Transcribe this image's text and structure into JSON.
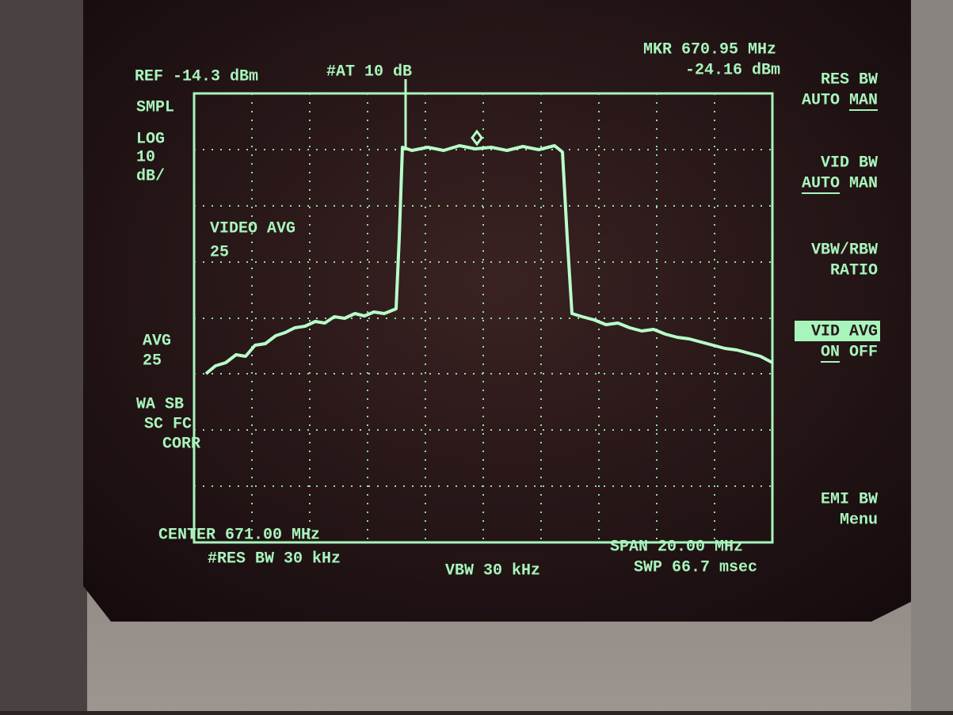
{
  "header": {
    "ref": "REF -14.3 dBm",
    "attenuation": "#AT 10 dB",
    "marker_freq": "MKR 670.95 MHz",
    "marker_level": "-24.16 dBm"
  },
  "left_annotations": [
    "SMPL",
    "LOG",
    "10",
    "dB/",
    "AVG",
    "25",
    "WA SB",
    "SC FC",
    "CORR"
  ],
  "overlay": [
    "VIDEO AVG",
    "25"
  ],
  "softkeys": [
    {
      "label": [
        "RES BW"
      ],
      "options": [
        "AUTO",
        "MAN"
      ]
    },
    {
      "label": [
        "VID BW"
      ],
      "options": [
        "AUTO",
        "MAN"
      ]
    },
    {
      "label": [
        "VBW/RBW",
        "RATIO"
      ],
      "options": []
    },
    {
      "label": [
        "VID AVG"
      ],
      "options": [
        "ON",
        "OFF"
      ]
    },
    {
      "label": [
        "EMI BW",
        "Menu"
      ],
      "options": []
    }
  ],
  "footer": {
    "center": "CENTER 671.00 MHz",
    "res_bw": "#RES BW 30 kHz",
    "vbw": "VBW 30 kHz",
    "span": "SPAN 20.00 MHz",
    "sweep": "SWP 66.7 msec"
  }
}
